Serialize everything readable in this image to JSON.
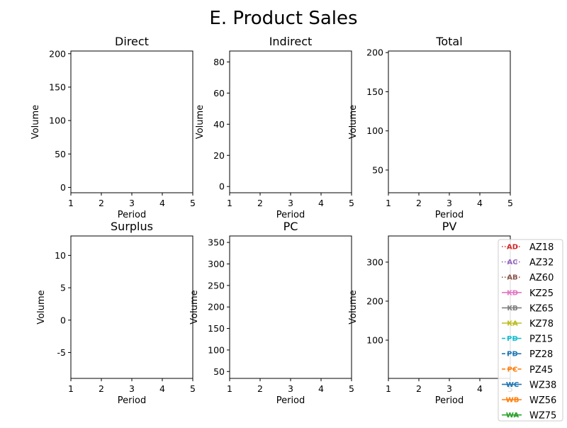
{
  "chart_data": {
    "type": "line",
    "title": "E. Product Sales",
    "panels": [
      {
        "title": "Direct",
        "xlabel": "Period",
        "ylabel": "Volume",
        "xlim": [
          1,
          5
        ],
        "ylim": [
          -8,
          204
        ],
        "xticks": [
          1,
          2,
          3,
          4,
          5
        ],
        "yticks": [
          0,
          50,
          100,
          150,
          200
        ]
      },
      {
        "title": "Indirect",
        "xlabel": "Period",
        "ylabel": "Volume",
        "xlim": [
          1,
          5
        ],
        "ylim": [
          -4,
          87
        ],
        "xticks": [
          1,
          2,
          3,
          4,
          5
        ],
        "yticks": [
          0,
          20,
          40,
          60,
          80
        ]
      },
      {
        "title": "Total",
        "xlabel": "Period",
        "ylabel": "Volume",
        "xlim": [
          1,
          5
        ],
        "ylim": [
          21,
          202
        ],
        "xticks": [
          1,
          2,
          3,
          4,
          5
        ],
        "yticks": [
          50,
          100,
          150,
          200
        ]
      },
      {
        "title": "Surplus",
        "xlabel": "Period",
        "ylabel": "Volume",
        "xlim": [
          1,
          5
        ],
        "ylim": [
          -9,
          13
        ],
        "xticks": [
          1,
          2,
          3,
          4,
          5
        ],
        "yticks": [
          -5,
          0,
          5,
          10
        ]
      },
      {
        "title": "PC",
        "xlabel": "Period",
        "ylabel": "Volume",
        "xlim": [
          1,
          5
        ],
        "ylim": [
          34,
          365
        ],
        "xticks": [
          1,
          2,
          3,
          4,
          5
        ],
        "yticks": [
          50,
          100,
          150,
          200,
          250,
          300,
          350
        ]
      },
      {
        "title": "PV",
        "xlabel": "Period",
        "ylabel": "Volume",
        "xlim": [
          1,
          5
        ],
        "ylim": [
          2,
          367
        ],
        "xticks": [
          1,
          2,
          3,
          4,
          5
        ],
        "yticks": [
          100,
          200,
          300
        ]
      }
    ],
    "legend": {
      "placement": "lower-right",
      "entries": [
        {
          "name": "AZ18",
          "marker": "AD",
          "color": "#d62728",
          "linestyle": "dotted"
        },
        {
          "name": "AZ32",
          "marker": "AC",
          "color": "#9467bd",
          "linestyle": "dotted"
        },
        {
          "name": "AZ60",
          "marker": "AB",
          "color": "#8c564b",
          "linestyle": "dotted"
        },
        {
          "name": "KZ25",
          "marker": "KD",
          "color": "#e377c2",
          "linestyle": "solid"
        },
        {
          "name": "KZ65",
          "marker": "KB",
          "color": "#7f7f7f",
          "linestyle": "solid"
        },
        {
          "name": "KZ78",
          "marker": "KA",
          "color": "#bcbd22",
          "linestyle": "solid"
        },
        {
          "name": "PZ15",
          "marker": "PD",
          "color": "#17becf",
          "linestyle": "dashed"
        },
        {
          "name": "PZ28",
          "marker": "PD",
          "color": "#1f77b4",
          "linestyle": "dashed"
        },
        {
          "name": "PZ45",
          "marker": "PC",
          "color": "#ff7f0e",
          "linestyle": "dashed"
        },
        {
          "name": "WZ38",
          "marker": "WC",
          "color": "#1f77b4",
          "linestyle": "solid"
        },
        {
          "name": "WZ56",
          "marker": "WB",
          "color": "#ff7f0e",
          "linestyle": "solid"
        },
        {
          "name": "WZ75",
          "marker": "WA",
          "color": "#2ca02c",
          "linestyle": "solid"
        }
      ]
    }
  }
}
